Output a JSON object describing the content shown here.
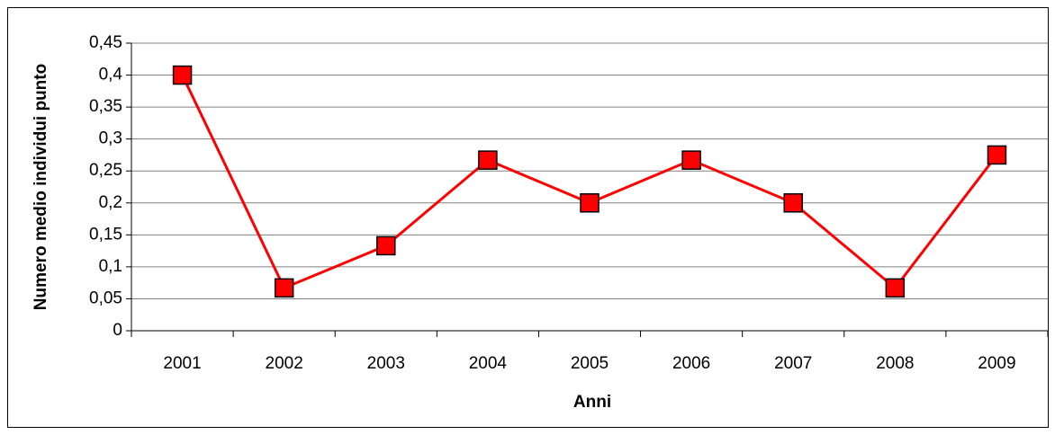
{
  "chart_data": {
    "type": "line",
    "x_label": "Anni",
    "y_label": "Numero medio individui punto",
    "categories": [
      "2001",
      "2002",
      "2003",
      "2004",
      "2005",
      "2006",
      "2007",
      "2008",
      "2009"
    ],
    "series": [
      {
        "name": "Numero medio individui punto",
        "color": "#ff0000",
        "values": [
          0.4,
          0.067,
          0.133,
          0.267,
          0.2,
          0.267,
          0.2,
          0.067,
          0.275
        ]
      }
    ],
    "ylim": [
      0,
      0.45
    ],
    "yticks": [
      0,
      {
        "value": 0.05,
        "label": "0,05"
      },
      {
        "value": 0.1,
        "label": "0,1"
      },
      {
        "value": 0.15,
        "label": "0,15"
      },
      {
        "value": 0.2,
        "label": "0,2"
      },
      {
        "value": 0.25,
        "label": "0,25"
      },
      {
        "value": 0.3,
        "label": "0,3"
      },
      {
        "value": 0.35,
        "label": "0,35"
      },
      {
        "value": 0.4,
        "label": "0,4"
      },
      {
        "value": 0.45,
        "label": "0,45"
      }
    ],
    "grid": true
  }
}
